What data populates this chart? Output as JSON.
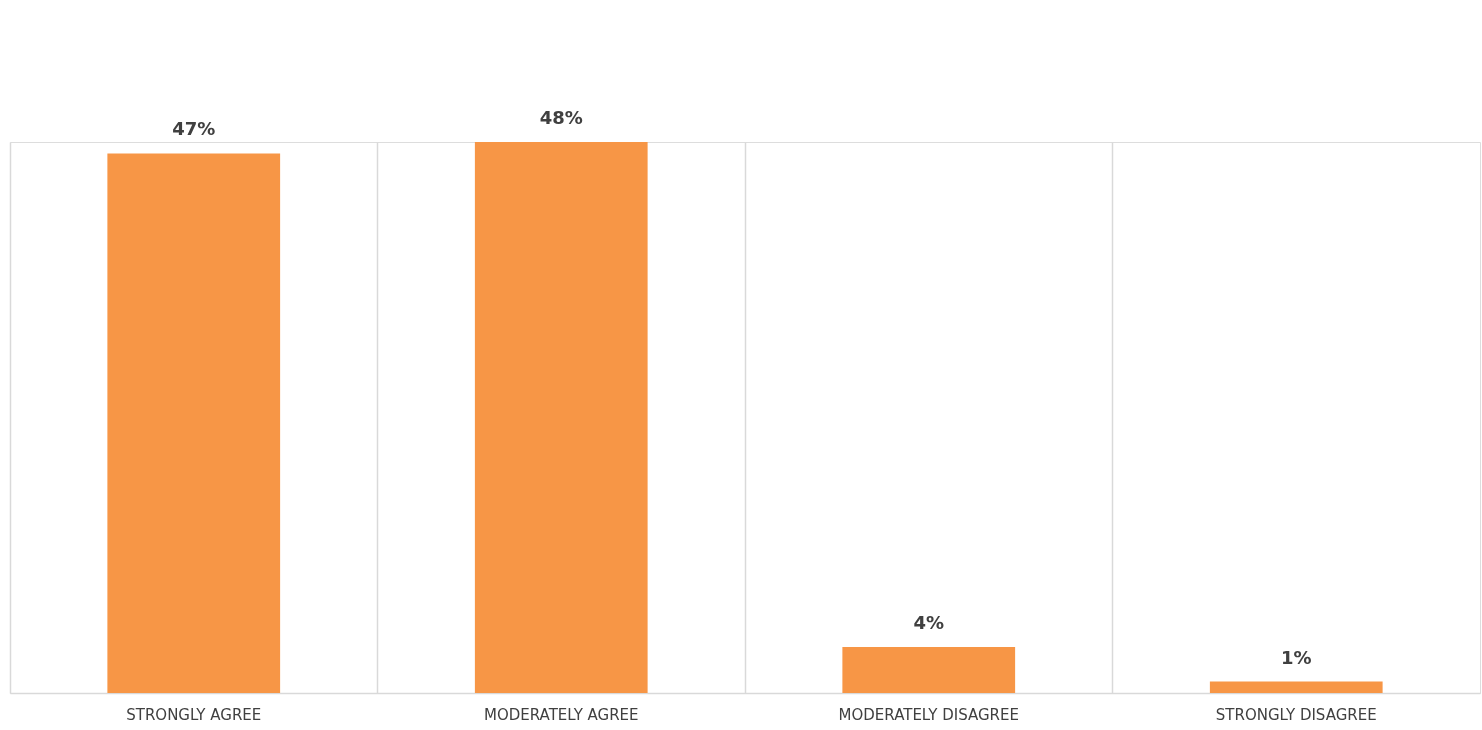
{
  "chart_data": {
    "type": "bar",
    "categories": [
      "STRONGLY AGREE",
      "MODERATELY AGREE",
      "MODERATELY DISAGREE",
      "STRONGLY DISAGREE"
    ],
    "values": [
      47,
      48,
      4,
      1
    ],
    "color": "#f79646",
    "value_labels": [
      "47%",
      "48%",
      "4%",
      "1%"
    ],
    "grid": "x"
  }
}
